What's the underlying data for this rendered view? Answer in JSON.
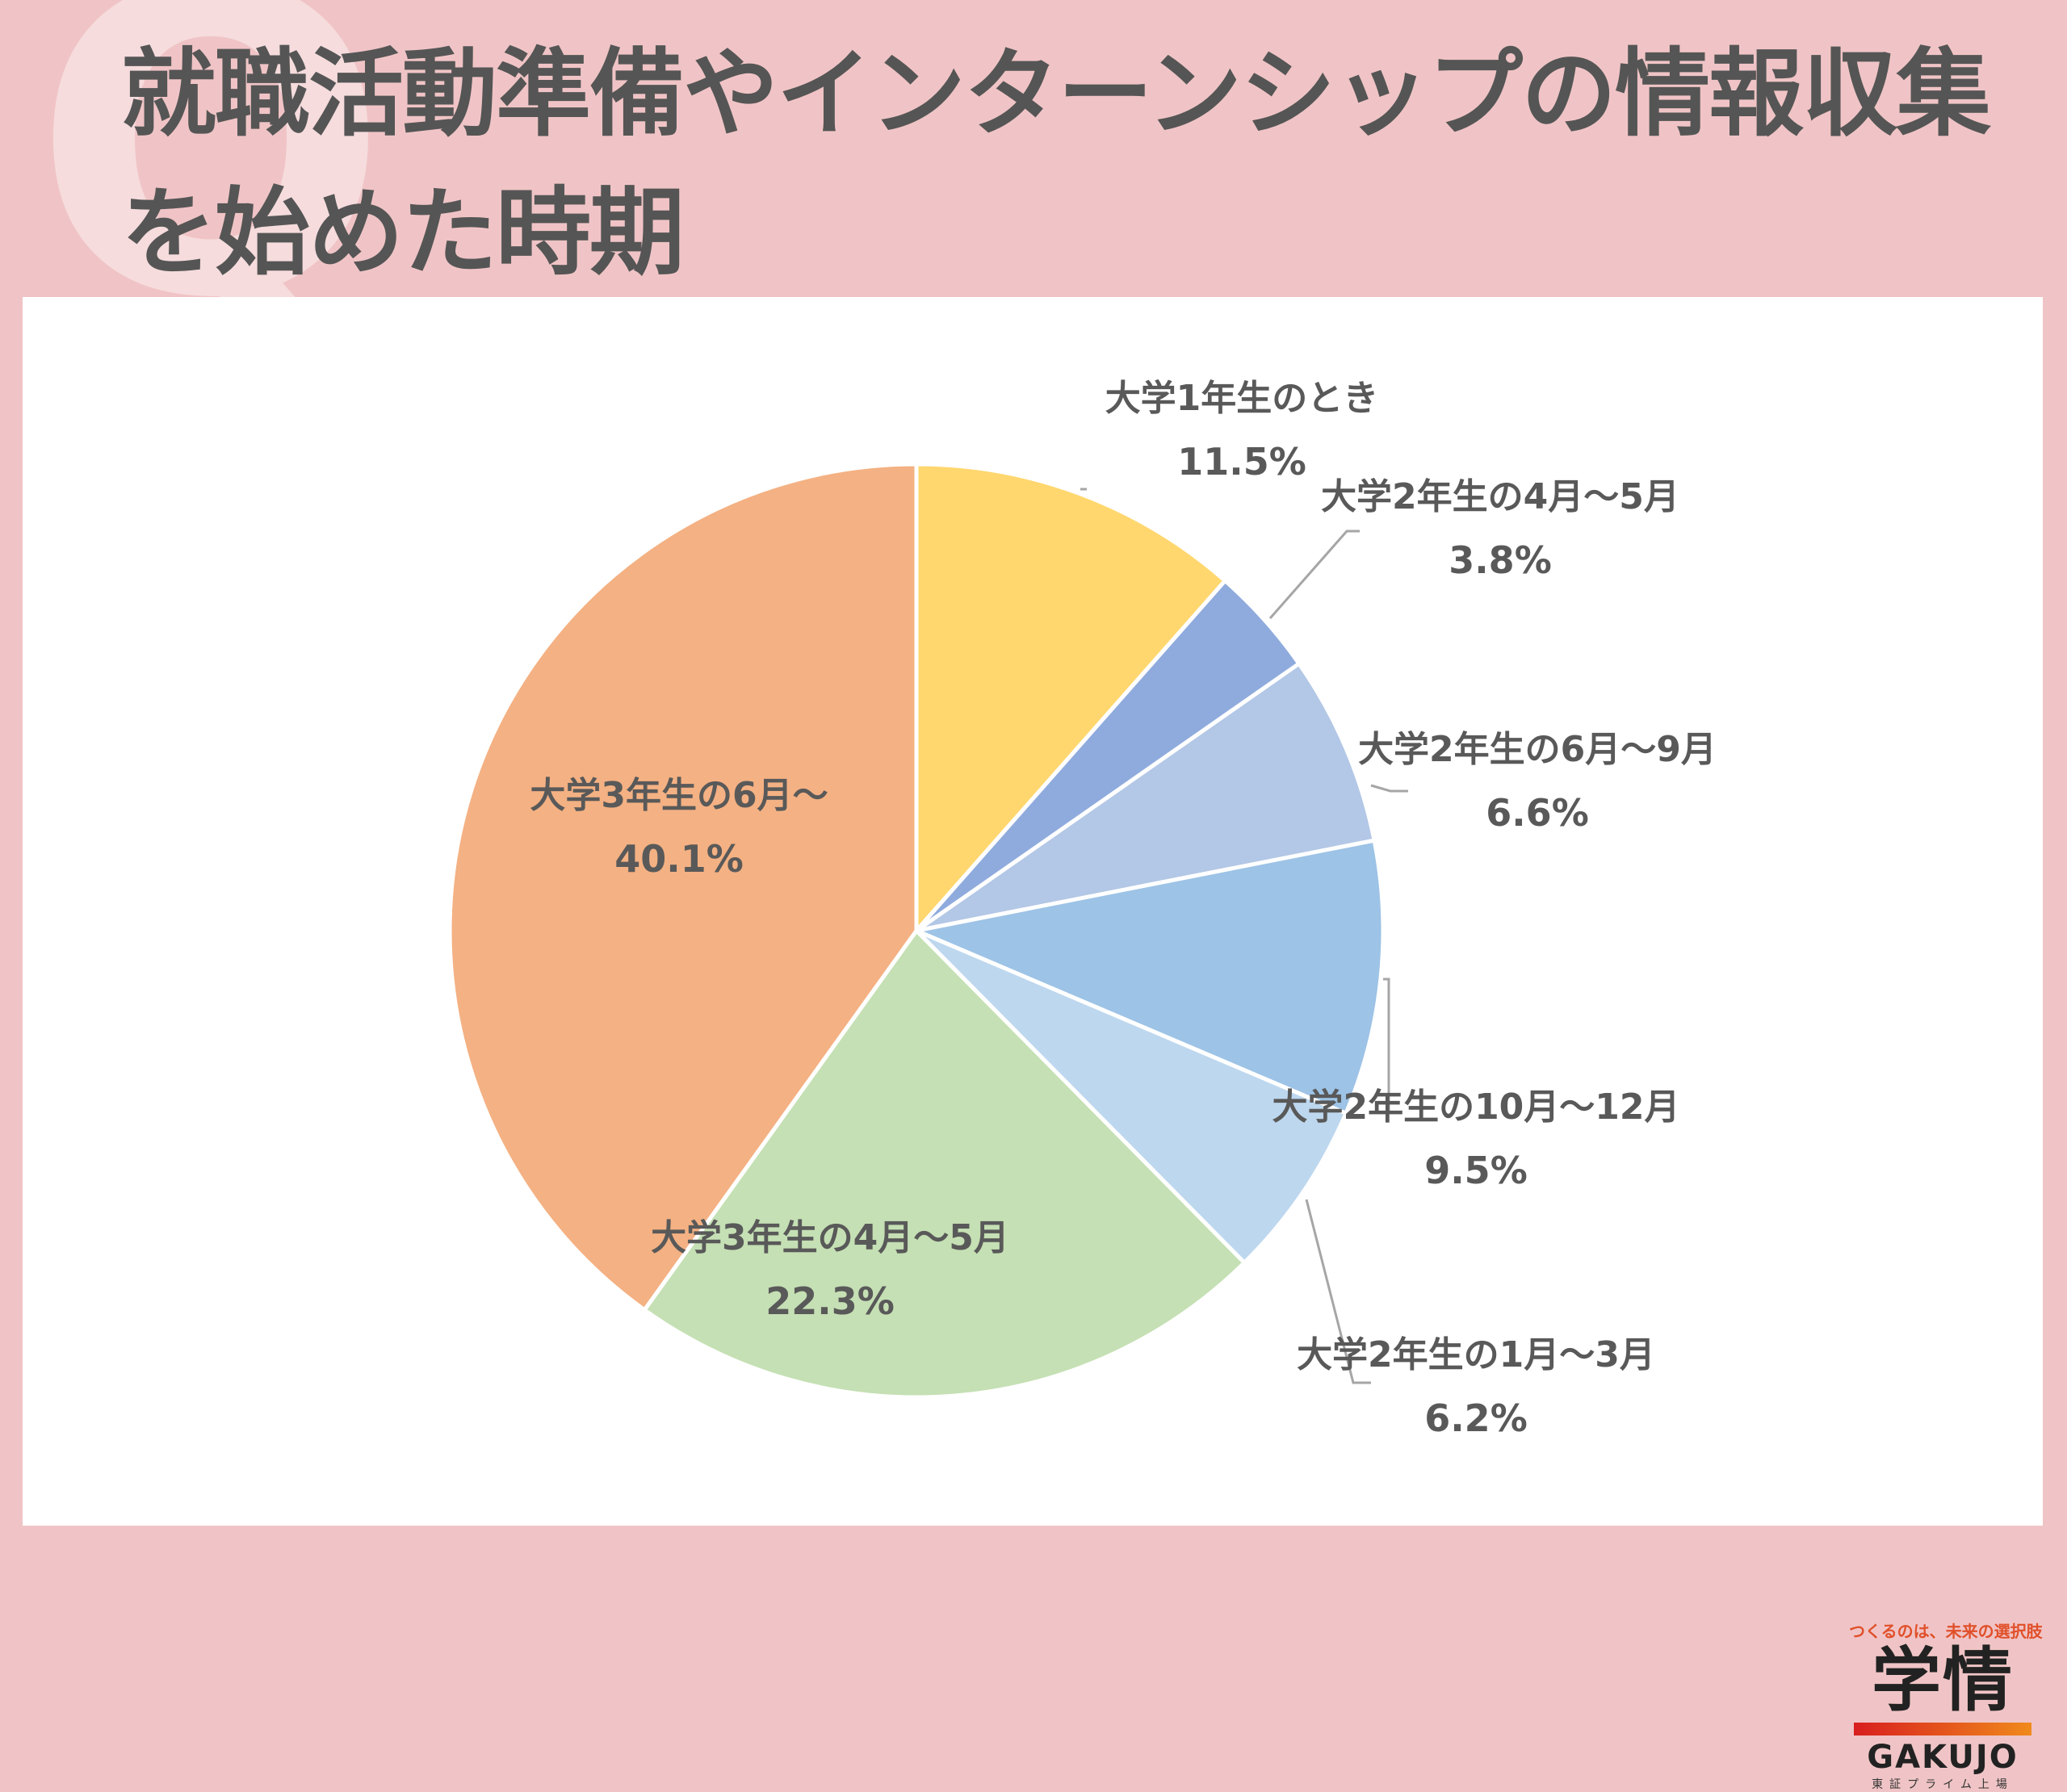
{
  "title": {
    "line1": "就職活動準備やインターンシップの情報収集",
    "line2": "を始めた時期",
    "background_mark": "Q"
  },
  "colors": {
    "background": "#f0c4c6",
    "panel": "#ffffff",
    "title_text": "#555555",
    "label_text": "#595959"
  },
  "chart_data": {
    "type": "pie",
    "start": "12 o'clock, clockwise",
    "slices": [
      {
        "label": "大学1年生のとき",
        "value": 11.5,
        "value_label": "11.5%",
        "color": "#ffd76e"
      },
      {
        "label": "大学2年生の4月～5月",
        "value": 3.8,
        "value_label": "3.8%",
        "color": "#8fabdd"
      },
      {
        "label": "大学2年生の6月～9月",
        "value": 6.6,
        "value_label": "6.6%",
        "color": "#b3c7e6"
      },
      {
        "label": "大学2年生の10月～12月",
        "value": 9.5,
        "value_label": "9.5%",
        "color": "#9dc3e6"
      },
      {
        "label": "大学2年生の1月～3月",
        "value": 6.2,
        "value_label": "6.2%",
        "color": "#bdd7ee"
      },
      {
        "label": "大学3年生の4月～5月",
        "value": 22.3,
        "value_label": "22.3%",
        "color": "#c5e0b4"
      },
      {
        "label": "大学3年生の6月～",
        "value": 40.1,
        "value_label": "40.1%",
        "color": "#f4b183"
      }
    ]
  },
  "logo": {
    "tagline": "つくるのは、未来の選択肢",
    "mark": "学情",
    "name": "GAKUJO",
    "sub": "東証プライム上場"
  }
}
